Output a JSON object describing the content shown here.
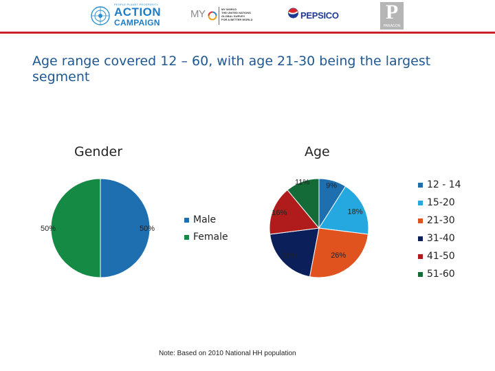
{
  "header": {
    "action_campaign": {
      "tagline": "PEOPLE PLANET PROSPERITY",
      "line1": "ACTION",
      "line2": "CAMPAIGN"
    },
    "my_world": {
      "mark": "MY",
      "text": "MY WORLD\nTHE UNITED NATIONS\nGLOBAL SURVEY\nFOR A BETTER WORLD"
    },
    "pepsico": "PEPSICO",
    "paragon": {
      "letter": "P",
      "word": "PARAGON"
    }
  },
  "slide": {
    "title": "Age range covered 12 – 60, with age 21-30 being the largest segment",
    "footnote": "Note: Based on 2010 National HH population"
  },
  "colors": {
    "male": "#1e6fb0",
    "female": "#158a45",
    "age_12_14": "#1e6fb0",
    "age_15_20": "#25a7e0",
    "age_21_30": "#e0531f",
    "age_31_40": "#0b1f5a",
    "age_41_50": "#b01c1c",
    "age_51_60": "#146b38",
    "header_line": "#cc1f2b"
  },
  "chart_data": [
    {
      "type": "pie",
      "title": "Gender",
      "categories": [
        "Male",
        "Female"
      ],
      "values": [
        50,
        50
      ],
      "data_labels": [
        "50%",
        "50%"
      ],
      "legend": "right"
    },
    {
      "type": "pie",
      "title": "Age",
      "categories": [
        "12 - 14",
        "15-20",
        "21-30",
        "31-40",
        "41-50",
        "51-60"
      ],
      "values": [
        9,
        18,
        26,
        20,
        16,
        11
      ],
      "data_labels": [
        "9%",
        "18%",
        "26%",
        "20%",
        "16%",
        "11%"
      ],
      "legend": "right"
    }
  ]
}
